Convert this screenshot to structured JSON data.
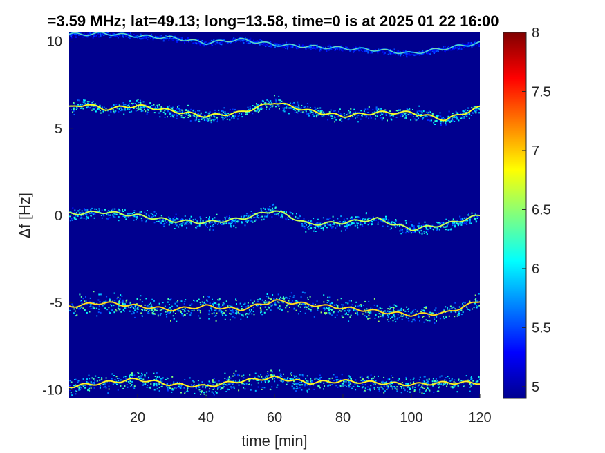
{
  "chart_data": {
    "type": "heatmap",
    "title": "=3.59 MHz;  lat=49.13; long=13.58, time=0 is at 2025 01 22 16:00",
    "xlabel": "time [min]",
    "ylabel": "Δf [Hz]",
    "xlim": [
      0,
      120
    ],
    "ylim": [
      -10.5,
      10.5
    ],
    "xticks": [
      20,
      40,
      60,
      80,
      100,
      120
    ],
    "xtick_labels": [
      "20",
      "40",
      "60",
      "80",
      "100",
      "120"
    ],
    "yticks": [
      10,
      5,
      0,
      -5,
      -10
    ],
    "ytick_labels": [
      "10",
      "5",
      "0",
      "-5",
      "-10"
    ],
    "colorbar": {
      "range": [
        4.9,
        8
      ],
      "ticks": [
        8,
        7.5,
        7,
        6.5,
        6,
        5.5,
        5
      ],
      "tick_labels": [
        "8",
        "7.5",
        "7",
        "6.5",
        "6",
        "5.5",
        "5"
      ],
      "colormap": "jet"
    },
    "background_color": "#00008f",
    "series": [
      {
        "offset": 10,
        "points": [
          [
            5,
            10.4
          ],
          [
            10,
            10.45
          ],
          [
            20,
            10.3
          ],
          [
            30,
            10.2
          ],
          [
            40,
            9.9
          ],
          [
            50,
            10.1
          ],
          [
            60,
            9.8
          ],
          [
            70,
            9.7
          ],
          [
            80,
            9.6
          ],
          [
            90,
            9.5
          ],
          [
            100,
            9.3
          ],
          [
            110,
            9.6
          ],
          [
            120,
            9.9
          ]
        ],
        "intensity": 5.8,
        "spread": 0.15
      },
      {
        "offset": 5,
        "points": [
          [
            1,
            6.2
          ],
          [
            5,
            6.4
          ],
          [
            10,
            6.1
          ],
          [
            20,
            6.3
          ],
          [
            30,
            6.0
          ],
          [
            40,
            5.7
          ],
          [
            50,
            5.9
          ],
          [
            60,
            6.5
          ],
          [
            70,
            6.0
          ],
          [
            80,
            5.7
          ],
          [
            90,
            5.9
          ],
          [
            100,
            5.9
          ],
          [
            110,
            5.5
          ],
          [
            120,
            6.2
          ]
        ],
        "intensity": 6.8,
        "spread": 0.35
      },
      {
        "offset": 0,
        "points": [
          [
            1,
            0.1
          ],
          [
            10,
            0.2
          ],
          [
            20,
            0.0
          ],
          [
            30,
            -0.3
          ],
          [
            40,
            -0.4
          ],
          [
            50,
            -0.2
          ],
          [
            60,
            0.3
          ],
          [
            70,
            -0.5
          ],
          [
            80,
            -0.4
          ],
          [
            90,
            -0.2
          ],
          [
            100,
            -0.8
          ],
          [
            110,
            -0.5
          ],
          [
            120,
            0.0
          ]
        ],
        "intensity": 6.6,
        "spread": 0.35
      },
      {
        "offset": -5,
        "points": [
          [
            1,
            -5.2
          ],
          [
            10,
            -5.0
          ],
          [
            20,
            -5.2
          ],
          [
            30,
            -5.4
          ],
          [
            40,
            -5.2
          ],
          [
            50,
            -5.4
          ],
          [
            60,
            -4.9
          ],
          [
            70,
            -5.1
          ],
          [
            80,
            -5.3
          ],
          [
            90,
            -5.5
          ],
          [
            100,
            -5.7
          ],
          [
            110,
            -5.6
          ],
          [
            120,
            -4.9
          ]
        ],
        "intensity": 7.0,
        "spread": 0.55
      },
      {
        "offset": -10,
        "points": [
          [
            1,
            -9.8
          ],
          [
            10,
            -9.6
          ],
          [
            20,
            -9.4
          ],
          [
            30,
            -9.7
          ],
          [
            40,
            -9.8
          ],
          [
            50,
            -9.5
          ],
          [
            60,
            -9.3
          ],
          [
            70,
            -9.6
          ],
          [
            80,
            -9.5
          ],
          [
            90,
            -9.6
          ],
          [
            100,
            -9.7
          ],
          [
            110,
            -9.6
          ],
          [
            120,
            -9.6
          ]
        ],
        "intensity": 6.9,
        "spread": 0.5
      }
    ]
  }
}
